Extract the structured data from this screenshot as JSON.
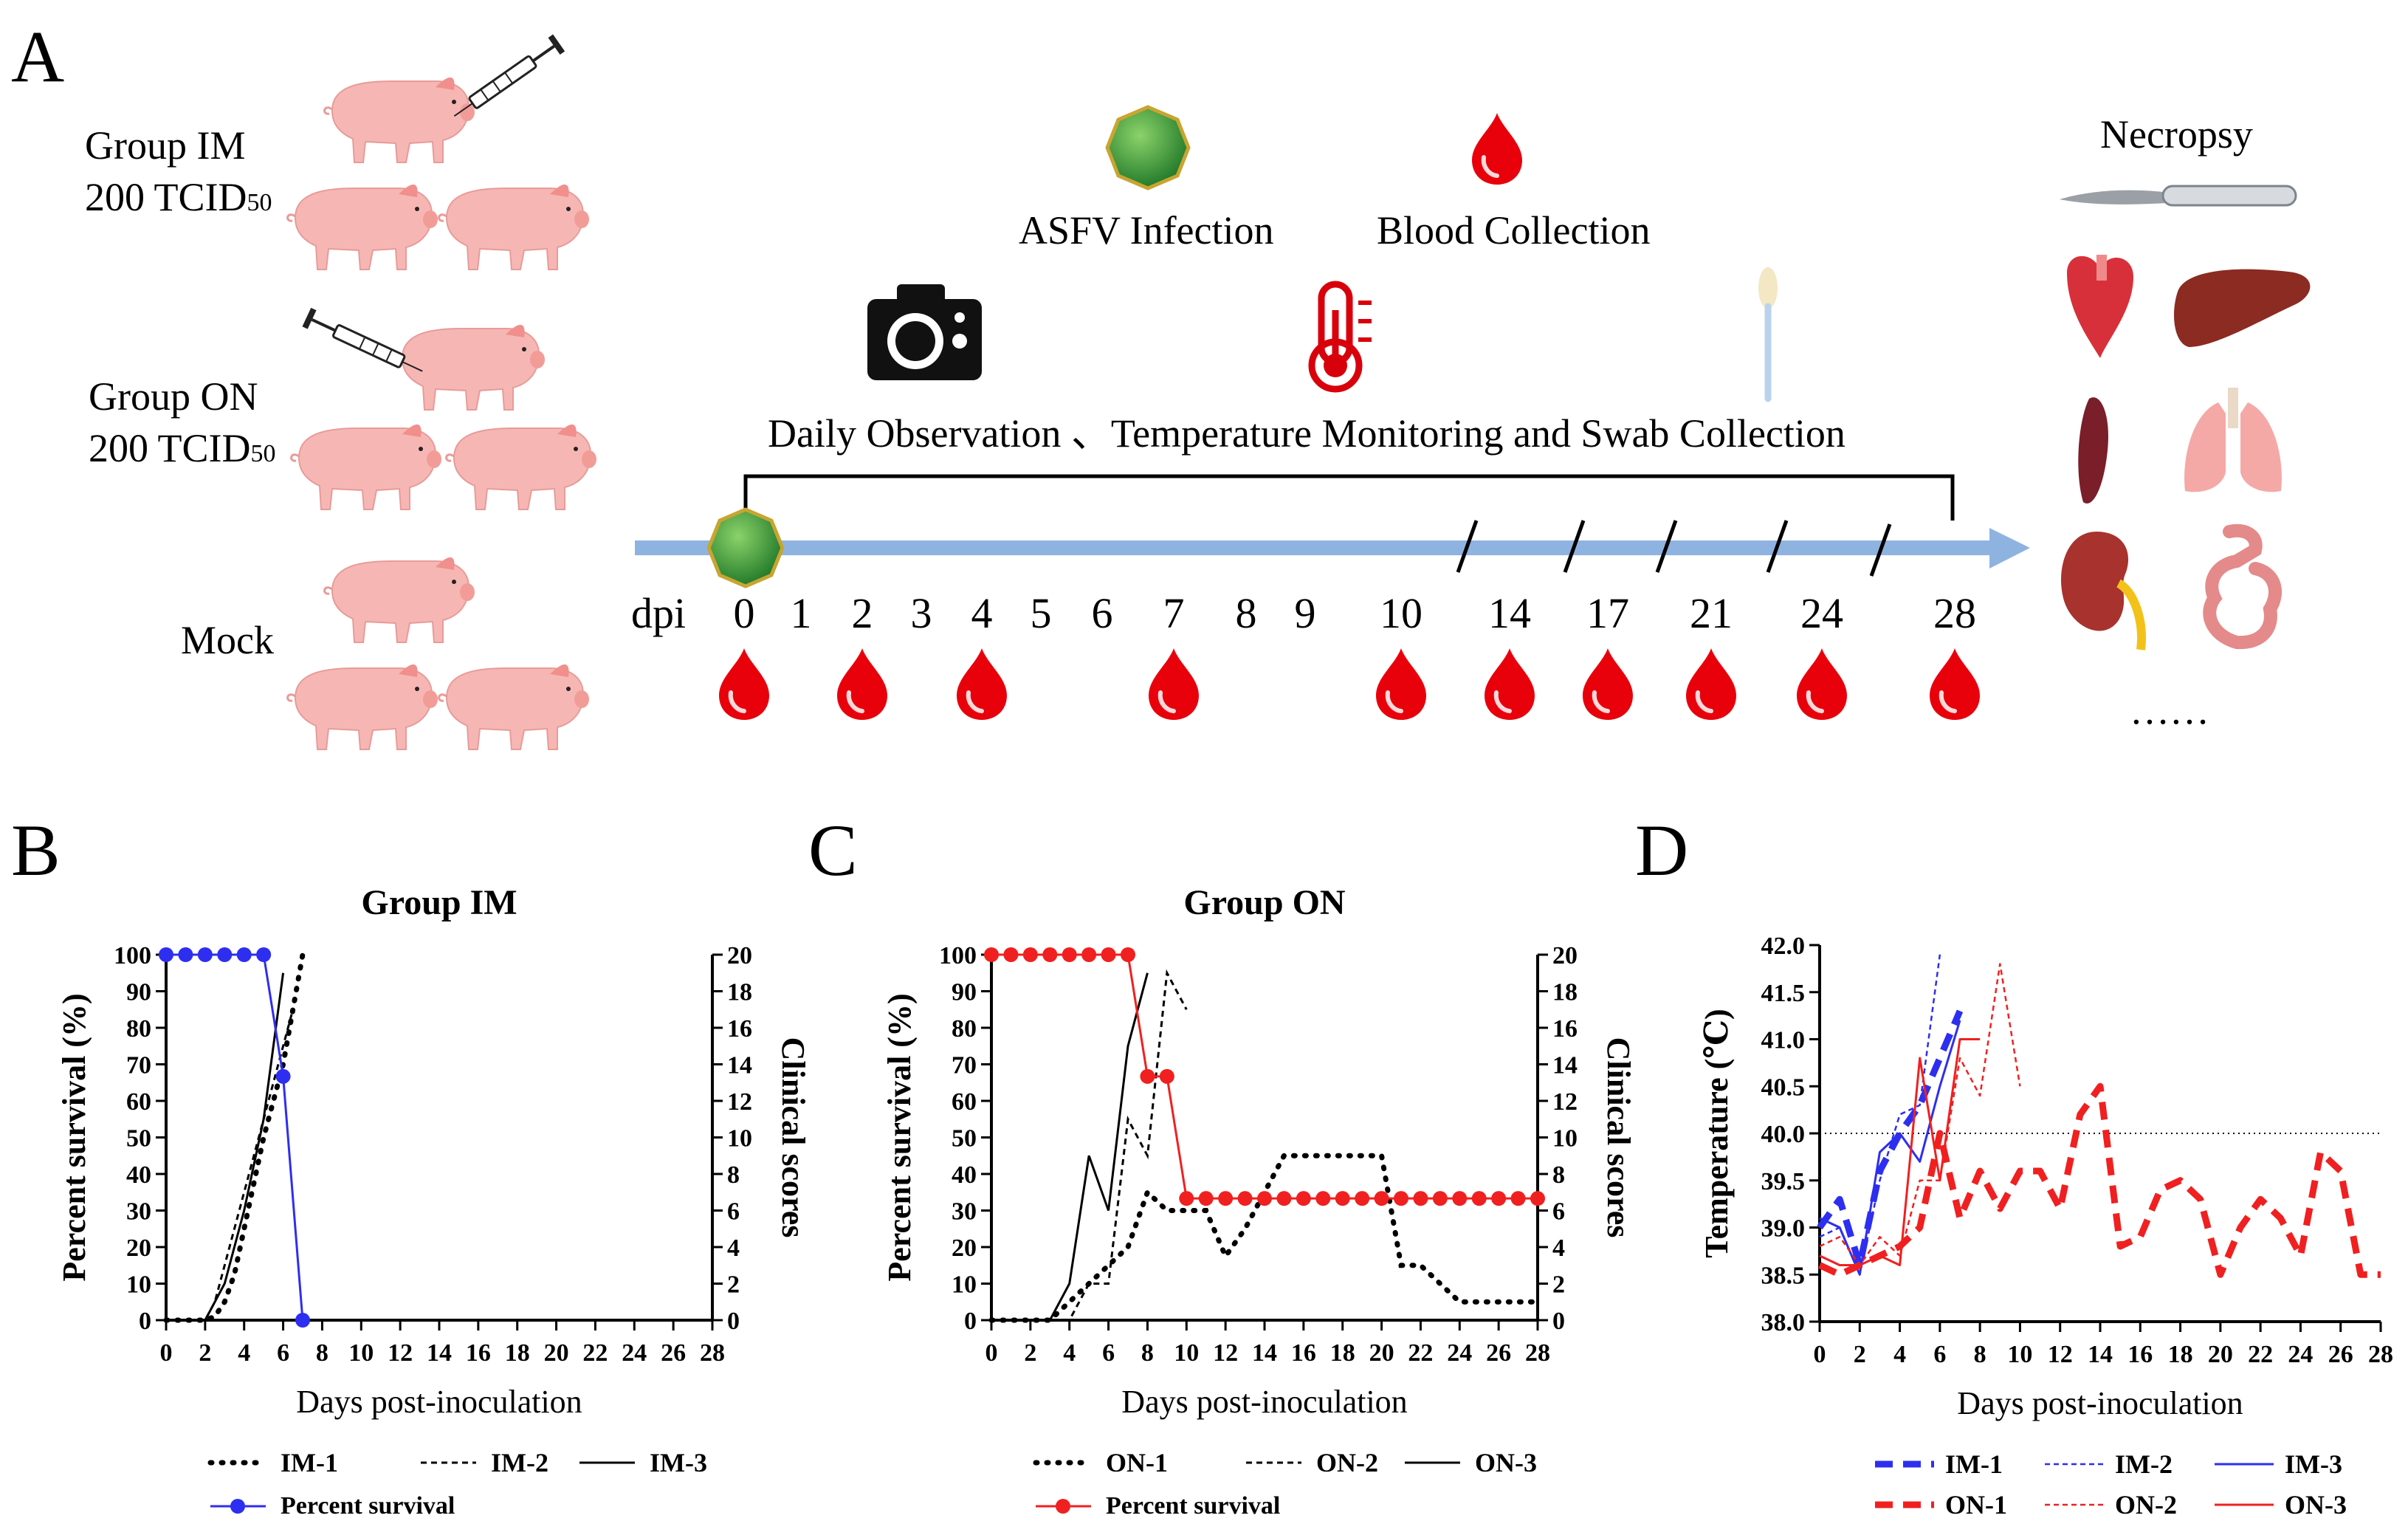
{
  "panels": {
    "a": "A",
    "b": "B",
    "c": "C",
    "d": "D"
  },
  "groups": {
    "im_name": "Group IM",
    "im_dose": "200 TCID",
    "im_sub": "50",
    "on_name": "Group ON",
    "on_dose": "200 TCID",
    "on_sub": "50",
    "mock": "Mock"
  },
  "timeline": {
    "asfv_label": "ASFV Infection",
    "blood_label": "Blood Collection",
    "observation_label": "Daily Observation 、Temperature Monitoring and Swab Collection",
    "dpi_label": "dpi",
    "days": [
      "0",
      "1",
      "2",
      "3",
      "4",
      "5",
      "6",
      "7",
      "8",
      "9",
      "10",
      "14",
      "17",
      "21",
      "24",
      "28"
    ],
    "blood_days": [
      "0",
      "2",
      "4",
      "7",
      "10",
      "14",
      "17",
      "21",
      "24",
      "28"
    ],
    "necropsy": "Necropsy",
    "ellipsis": "……"
  },
  "colors": {
    "blue": "#2e2ef0",
    "red": "#f02020",
    "arrow": "#8fb3e0",
    "black": "#000000"
  },
  "chart_data": [
    {
      "type": "line",
      "title": "Group IM",
      "xlabel": "Days post-inoculation",
      "ylabel_left": "Percent survival (%)",
      "ylabel_right": "Clinical scores",
      "xlim": [
        0,
        28
      ],
      "ylim_left": [
        0,
        100
      ],
      "ylim_right": [
        0,
        20
      ],
      "xticks": [
        "0",
        "2",
        "4",
        "6",
        "8",
        "10",
        "12",
        "14",
        "16",
        "18",
        "20",
        "22",
        "24",
        "26",
        "28"
      ],
      "yticks_left": [
        "0",
        "10",
        "20",
        "30",
        "40",
        "50",
        "60",
        "70",
        "80",
        "90",
        "100"
      ],
      "yticks_right": [
        "0",
        "2",
        "4",
        "6",
        "8",
        "10",
        "12",
        "14",
        "16",
        "18",
        "20"
      ],
      "series": [
        {
          "name": "IM-1",
          "axis": "right",
          "style": "dotted",
          "x": [
            0,
            1,
            2,
            2.5,
            3,
            3.5,
            4,
            4.5,
            5,
            5.5,
            6,
            6.5,
            7
          ],
          "y": [
            0,
            0,
            0,
            0.2,
            1,
            2.5,
            5,
            7.5,
            10,
            12,
            14,
            17,
            20
          ]
        },
        {
          "name": "IM-2",
          "axis": "right",
          "style": "dashed",
          "x": [
            0,
            1,
            2,
            2.5,
            3,
            4,
            5,
            6,
            6.5
          ],
          "y": [
            0,
            0,
            0,
            1,
            3,
            7,
            11,
            15,
            17
          ]
        },
        {
          "name": "IM-3",
          "axis": "right",
          "style": "solid",
          "x": [
            0,
            1,
            2,
            3,
            4,
            5,
            6
          ],
          "y": [
            0,
            0,
            0,
            2,
            6,
            11,
            19
          ]
        },
        {
          "name": "Percent survival",
          "axis": "left",
          "style": "marker",
          "x": [
            0,
            1,
            2,
            3,
            4,
            5,
            6,
            7
          ],
          "y": [
            100,
            100,
            100,
            100,
            100,
            100,
            66.7,
            0
          ]
        }
      ],
      "legend": [
        "IM-1",
        "IM-2",
        "IM-3",
        "Percent survival"
      ]
    },
    {
      "type": "line",
      "title": "Group ON",
      "xlabel": "Days post-inoculation",
      "ylabel_left": "Percent survival (%)",
      "ylabel_right": "Clinical scores",
      "xlim": [
        0,
        28
      ],
      "ylim_left": [
        0,
        100
      ],
      "ylim_right": [
        0,
        20
      ],
      "xticks": [
        "0",
        "2",
        "4",
        "6",
        "8",
        "10",
        "12",
        "14",
        "16",
        "18",
        "20",
        "22",
        "24",
        "26",
        "28"
      ],
      "yticks_left": [
        "0",
        "10",
        "20",
        "30",
        "40",
        "50",
        "60",
        "70",
        "80",
        "90",
        "100"
      ],
      "yticks_right": [
        "0",
        "2",
        "4",
        "6",
        "8",
        "10",
        "12",
        "14",
        "16",
        "18",
        "20"
      ],
      "series": [
        {
          "name": "ON-1",
          "axis": "right",
          "style": "dotted",
          "x": [
            0,
            1,
            2,
            3,
            4,
            5,
            6,
            7,
            8,
            9,
            10,
            11,
            12,
            13,
            14,
            15,
            16,
            17,
            18,
            19,
            20,
            21,
            22,
            23,
            24,
            25,
            26,
            27,
            28
          ],
          "y": [
            0,
            0,
            0,
            0,
            1,
            2,
            3,
            4,
            7,
            6,
            6,
            6,
            3.5,
            5,
            7,
            9,
            9,
            9,
            9,
            9,
            9,
            3,
            3,
            2,
            1,
            1,
            1,
            1,
            1
          ]
        },
        {
          "name": "ON-2",
          "axis": "right",
          "style": "dashed",
          "x": [
            0,
            1,
            2,
            3,
            4,
            5,
            6,
            7,
            8,
            9,
            10
          ],
          "y": [
            0,
            0,
            0,
            0,
            0,
            2,
            2,
            11,
            9,
            19,
            17
          ]
        },
        {
          "name": "ON-3",
          "axis": "right",
          "style": "solid",
          "x": [
            0,
            1,
            2,
            3,
            4,
            5,
            6,
            7,
            8
          ],
          "y": [
            0,
            0,
            0,
            0,
            2,
            9,
            6,
            15,
            19
          ]
        },
        {
          "name": "Percent survival",
          "axis": "left",
          "style": "marker",
          "x": [
            0,
            1,
            2,
            3,
            4,
            5,
            6,
            7,
            8,
            9,
            10,
            11,
            12,
            13,
            14,
            15,
            16,
            17,
            18,
            19,
            20,
            21,
            22,
            23,
            24,
            25,
            26,
            27,
            28
          ],
          "y": [
            100,
            100,
            100,
            100,
            100,
            100,
            100,
            100,
            66.7,
            66.7,
            33.3,
            33.3,
            33.3,
            33.3,
            33.3,
            33.3,
            33.3,
            33.3,
            33.3,
            33.3,
            33.3,
            33.3,
            33.3,
            33.3,
            33.3,
            33.3,
            33.3,
            33.3,
            33.3
          ]
        }
      ],
      "legend": [
        "ON-1",
        "ON-2",
        "ON-3",
        "Percent survival"
      ]
    },
    {
      "type": "line",
      "title": "",
      "xlabel": "Days post-inoculation",
      "ylabel": "Temperature (℃)",
      "xlim": [
        0,
        28
      ],
      "ylim": [
        38.0,
        42.0
      ],
      "threshold": 40.0,
      "xticks": [
        "0",
        "2",
        "4",
        "6",
        "8",
        "10",
        "12",
        "14",
        "16",
        "18",
        "20",
        "22",
        "24",
        "26",
        "28"
      ],
      "yticks": [
        "38.0",
        "38.5",
        "39.0",
        "39.5",
        "40.0",
        "40.5",
        "41.0",
        "41.5",
        "42.0"
      ],
      "series": [
        {
          "name": "IM-1",
          "color": "blue",
          "style": "thick-dash",
          "x": [
            0,
            1,
            2,
            3,
            4,
            5,
            6,
            7
          ],
          "y": [
            39.0,
            39.3,
            38.6,
            39.6,
            40.0,
            40.3,
            40.8,
            41.3
          ]
        },
        {
          "name": "IM-2",
          "color": "blue",
          "style": "thin-dash",
          "x": [
            0,
            1,
            2,
            3,
            4,
            5,
            6
          ],
          "y": [
            38.9,
            39.0,
            38.5,
            39.5,
            40.2,
            40.3,
            41.9
          ]
        },
        {
          "name": "IM-3",
          "color": "blue",
          "style": "solid",
          "x": [
            0,
            1,
            2,
            3,
            4,
            5,
            6,
            7
          ],
          "y": [
            39.1,
            39.0,
            38.5,
            39.8,
            40.0,
            39.7,
            40.5,
            41.2
          ]
        },
        {
          "name": "ON-1",
          "color": "red",
          "style": "thick-dash",
          "x": [
            0,
            1,
            2,
            3,
            4,
            5,
            6,
            7,
            8,
            9,
            10,
            11,
            12,
            13,
            14,
            15,
            16,
            17,
            18,
            19,
            20,
            21,
            22,
            23,
            24,
            25,
            26,
            27,
            28
          ],
          "y": [
            38.6,
            38.5,
            38.6,
            38.7,
            38.8,
            39.0,
            40.0,
            39.1,
            39.6,
            39.2,
            39.6,
            39.6,
            39.2,
            40.2,
            40.5,
            38.8,
            38.9,
            39.4,
            39.5,
            39.3,
            38.5,
            39.0,
            39.3,
            39.1,
            38.7,
            39.8,
            39.6,
            38.5,
            38.5
          ]
        },
        {
          "name": "ON-2",
          "color": "red",
          "style": "thin-dash",
          "x": [
            0,
            1,
            2,
            3,
            4,
            5,
            6,
            7,
            8,
            9,
            10
          ],
          "y": [
            38.8,
            38.9,
            38.6,
            38.9,
            38.7,
            39.5,
            39.5,
            40.8,
            40.4,
            41.8,
            40.5
          ]
        },
        {
          "name": "ON-3",
          "color": "red",
          "style": "solid",
          "x": [
            0,
            1,
            2,
            3,
            4,
            5,
            6,
            7,
            8
          ],
          "y": [
            38.7,
            38.6,
            38.6,
            38.7,
            38.6,
            40.8,
            39.5,
            41.0,
            41.0
          ]
        }
      ],
      "legend": [
        "IM-1",
        "IM-2",
        "IM-3",
        "ON-1",
        "ON-2",
        "ON-3"
      ]
    }
  ]
}
